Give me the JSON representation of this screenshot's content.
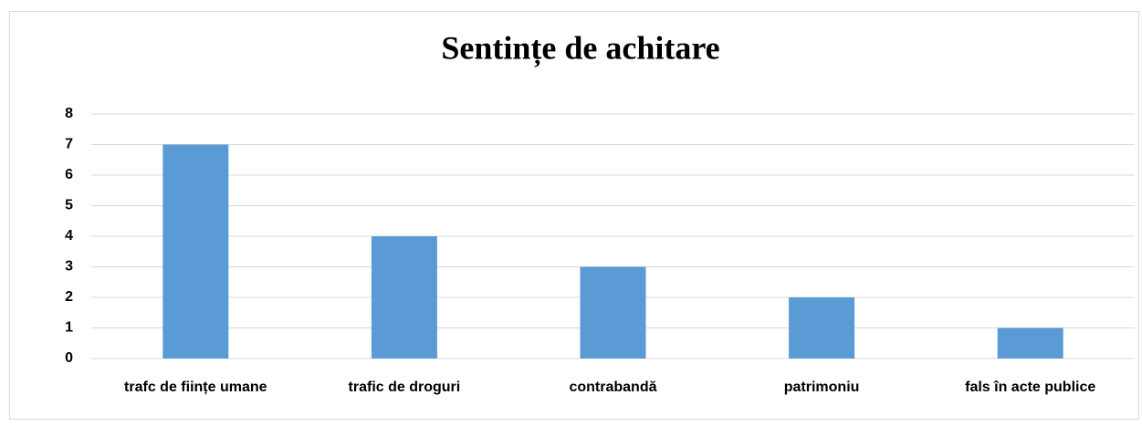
{
  "chart_data": {
    "type": "bar",
    "title": "Sentințe de achitare",
    "categories": [
      "trafc de ființe umane",
      "trafic de droguri",
      "contrabandă",
      "patrimoniu",
      "fals în acte publice"
    ],
    "values": [
      7,
      4,
      3,
      2,
      1
    ],
    "color": "#5b9bd5",
    "ylim": [
      0,
      8
    ],
    "yticks": [
      0,
      1,
      2,
      3,
      4,
      5,
      6,
      7,
      8
    ],
    "grid": true
  }
}
